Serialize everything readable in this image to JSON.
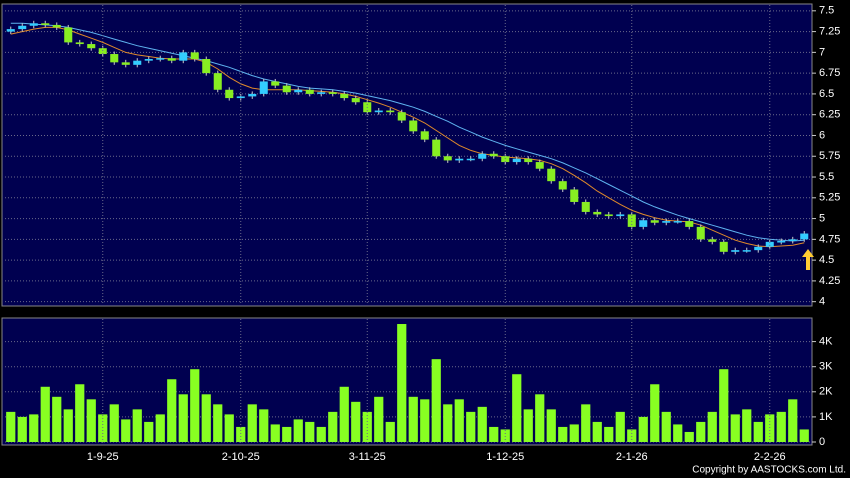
{
  "chart_data": [
    {
      "type": "candlestick",
      "up_color": "#33ccff",
      "down_color": "#88ee22",
      "open": [
        7.25,
        7.28,
        7.32,
        7.35,
        7.33,
        7.3,
        7.12,
        7.1,
        7.05,
        6.98,
        6.88,
        6.85,
        6.9,
        6.92,
        6.93,
        6.9,
        7.0,
        6.92,
        6.75,
        6.55,
        6.45,
        6.47,
        6.5,
        6.65,
        6.6,
        6.52,
        6.55,
        6.5,
        6.52,
        6.5,
        6.45,
        6.4,
        6.28,
        6.3,
        6.28,
        6.18,
        6.05,
        5.95,
        5.75,
        5.7,
        5.72,
        5.72,
        5.78,
        5.75,
        5.68,
        5.72,
        5.68,
        5.6,
        5.45,
        5.35,
        5.2,
        5.08,
        5.05,
        5.03,
        5.05,
        4.9,
        4.98,
        4.95,
        4.97,
        4.97,
        4.9,
        4.75,
        4.72,
        4.6,
        4.62,
        4.62,
        4.66,
        4.72,
        4.73,
        4.75
      ],
      "high": [
        7.31,
        7.35,
        7.38,
        7.38,
        7.36,
        7.33,
        7.15,
        7.13,
        7.08,
        7.01,
        6.91,
        6.93,
        6.95,
        6.96,
        6.96,
        7.03,
        7.03,
        6.95,
        6.78,
        6.58,
        6.5,
        6.53,
        6.68,
        6.68,
        6.63,
        6.58,
        6.58,
        6.55,
        6.55,
        6.53,
        6.48,
        6.43,
        6.33,
        6.33,
        6.31,
        6.21,
        6.08,
        5.98,
        5.78,
        5.75,
        5.75,
        5.81,
        5.81,
        5.78,
        5.75,
        5.75,
        5.71,
        5.63,
        5.48,
        5.38,
        5.23,
        5.11,
        5.08,
        5.08,
        5.08,
        5.01,
        5.01,
        5.0,
        5.0,
        5.0,
        4.93,
        4.78,
        4.75,
        4.65,
        4.65,
        4.69,
        4.75,
        4.76,
        4.78,
        4.85
      ],
      "low": [
        7.22,
        7.25,
        7.29,
        7.3,
        7.27,
        7.09,
        7.07,
        7.02,
        6.95,
        6.85,
        6.82,
        6.82,
        6.87,
        6.89,
        6.87,
        6.87,
        6.89,
        6.72,
        6.52,
        6.42,
        6.42,
        6.44,
        6.47,
        6.57,
        6.49,
        6.49,
        6.47,
        6.47,
        6.47,
        6.42,
        6.37,
        6.25,
        6.25,
        6.25,
        6.15,
        6.02,
        5.92,
        5.72,
        5.67,
        5.67,
        5.69,
        5.69,
        5.72,
        5.65,
        5.65,
        5.65,
        5.57,
        5.42,
        5.32,
        5.17,
        5.05,
        5.02,
        5.0,
        5.0,
        4.87,
        4.87,
        4.92,
        4.92,
        4.94,
        4.87,
        4.72,
        4.69,
        4.57,
        4.57,
        4.59,
        4.59,
        4.63,
        4.69,
        4.7,
        4.72
      ],
      "close": [
        7.28,
        7.32,
        7.35,
        7.33,
        7.3,
        7.12,
        7.1,
        7.05,
        6.98,
        6.88,
        6.85,
        6.9,
        6.92,
        6.93,
        6.9,
        7.0,
        6.92,
        6.75,
        6.55,
        6.45,
        6.47,
        6.5,
        6.65,
        6.6,
        6.52,
        6.55,
        6.5,
        6.52,
        6.5,
        6.45,
        6.4,
        6.28,
        6.3,
        6.28,
        6.18,
        6.05,
        5.95,
        5.75,
        5.7,
        5.72,
        5.72,
        5.78,
        5.75,
        5.68,
        5.72,
        5.68,
        5.6,
        5.45,
        5.35,
        5.2,
        5.08,
        5.05,
        5.03,
        5.05,
        4.9,
        4.98,
        4.95,
        4.97,
        4.97,
        4.9,
        4.75,
        4.72,
        4.6,
        4.62,
        4.62,
        4.66,
        4.72,
        4.73,
        4.75,
        4.82
      ],
      "lines": [
        {
          "color": "#e08a2a",
          "values": [
            7.22,
            7.25,
            7.28,
            7.3,
            7.3,
            7.27,
            7.22,
            7.17,
            7.12,
            7.06,
            7.0,
            6.97,
            6.95,
            6.93,
            6.92,
            6.92,
            6.92,
            6.88,
            6.8,
            6.7,
            6.62,
            6.57,
            6.55,
            6.55,
            6.55,
            6.55,
            6.54,
            6.53,
            6.52,
            6.5,
            6.47,
            6.43,
            6.39,
            6.34,
            6.28,
            6.22,
            6.15,
            6.06,
            5.97,
            5.88,
            5.82,
            5.78,
            5.76,
            5.74,
            5.73,
            5.72,
            5.7,
            5.66,
            5.6,
            5.52,
            5.43,
            5.33,
            5.25,
            5.17,
            5.1,
            5.05,
            5.01,
            4.98,
            4.97,
            4.96,
            4.92,
            4.86,
            4.8,
            4.74,
            4.7,
            4.67,
            4.66,
            4.67,
            4.68,
            4.71
          ]
        },
        {
          "color": "#5fb4f0",
          "values": [
            7.35,
            7.35,
            7.34,
            7.33,
            7.32,
            7.3,
            7.27,
            7.24,
            7.2,
            7.16,
            7.12,
            7.08,
            7.05,
            7.02,
            6.99,
            6.96,
            6.93,
            6.9,
            6.86,
            6.82,
            6.77,
            6.72,
            6.68,
            6.65,
            6.62,
            6.59,
            6.57,
            6.56,
            6.55,
            6.53,
            6.51,
            6.48,
            6.45,
            6.42,
            6.38,
            6.34,
            6.29,
            6.23,
            6.17,
            6.1,
            6.04,
            5.98,
            5.93,
            5.88,
            5.84,
            5.8,
            5.76,
            5.72,
            5.67,
            5.61,
            5.55,
            5.48,
            5.41,
            5.34,
            5.27,
            5.2,
            5.14,
            5.09,
            5.04,
            5.0,
            4.96,
            4.92,
            4.88,
            4.84,
            4.8,
            4.77,
            4.75,
            4.74,
            4.73,
            4.74
          ]
        }
      ],
      "ylim": [
        3.96,
        7.57
      ],
      "yticks": [
        4,
        4.25,
        4.5,
        4.75,
        5,
        5.25,
        5.5,
        5.75,
        6,
        6.25,
        6.5,
        6.75,
        7,
        7.25,
        7.5
      ],
      "grid": true
    },
    {
      "type": "bar",
      "color": "#88ff22",
      "categories": [
        null,
        null,
        null,
        null,
        null,
        null,
        null,
        null,
        "1-9-25",
        null,
        null,
        null,
        null,
        null,
        null,
        null,
        null,
        null,
        null,
        null,
        "2-10-25",
        null,
        null,
        null,
        null,
        null,
        null,
        null,
        null,
        null,
        null,
        "3-11-25",
        null,
        null,
        null,
        null,
        null,
        null,
        null,
        null,
        null,
        null,
        null,
        "1-12-25",
        null,
        null,
        null,
        null,
        null,
        null,
        null,
        null,
        null,
        null,
        "2-1-26",
        null,
        null,
        null,
        null,
        null,
        null,
        null,
        null,
        null,
        null,
        null,
        "2-2-26",
        null,
        null,
        null
      ],
      "values": [
        1200,
        1000,
        1100,
        2200,
        1800,
        1300,
        2300,
        1700,
        1100,
        1500,
        900,
        1300,
        800,
        1100,
        2500,
        1900,
        2900,
        1900,
        1500,
        1100,
        600,
        1500,
        1300,
        700,
        600,
        900,
        800,
        600,
        1200,
        2200,
        1600,
        1200,
        1800,
        800,
        4700,
        1800,
        1700,
        3300,
        1500,
        1700,
        1200,
        1400,
        600,
        500,
        2700,
        1300,
        1900,
        1300,
        600,
        700,
        1500,
        800,
        600,
        1200,
        500,
        1000,
        2300,
        1200,
        700,
        400,
        800,
        1200,
        2900,
        1100,
        1300,
        800,
        1100,
        1200,
        1700,
        500
      ],
      "ylim": [
        -80,
        4900
      ],
      "yticks": [
        {
          "value": 0,
          "label": "0"
        },
        {
          "value": 1000,
          "label": "1K"
        },
        {
          "value": 2000,
          "label": "2K"
        },
        {
          "value": 3000,
          "label": "3K"
        },
        {
          "value": 4000,
          "label": "4K"
        }
      ],
      "grid": true
    }
  ],
  "footer": "Copyright by AASTOCKS.com Ltd."
}
